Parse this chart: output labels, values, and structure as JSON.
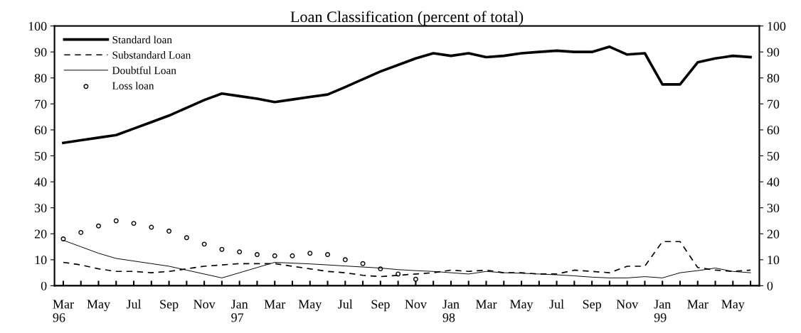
{
  "chart_data": {
    "type": "line",
    "title": "Loan Classification (percent of total)",
    "categories": [
      "Mar\n96",
      null,
      "May",
      null,
      "Jul",
      null,
      "Sep",
      null,
      "Nov",
      null,
      "Jan\n97",
      null,
      "Mar",
      null,
      "May",
      null,
      "Jul",
      null,
      "Sep",
      null,
      "Nov",
      null,
      "Jan\n98",
      null,
      "Mar",
      null,
      "May",
      null,
      "Jul",
      null,
      "Sep",
      null,
      "Nov",
      null,
      "Jan\n99",
      null,
      "Mar",
      null,
      "May",
      null
    ],
    "series": [
      {
        "name": "Standard loan",
        "color": "#000000",
        "line_style": "solid",
        "marker": "none",
        "values": [
          55,
          56,
          57,
          58,
          60.5,
          63,
          65.5,
          68.5,
          71.5,
          74,
          73,
          72,
          70.7,
          71.7,
          72.7,
          73.6,
          76.5,
          79.5,
          82.5,
          85,
          87.5,
          89.5,
          88.5,
          89.5,
          88,
          88.5,
          89.5,
          90,
          90.5,
          90,
          90,
          92,
          89,
          89.5,
          77.5,
          77.5,
          86,
          87.5,
          88.5,
          88
        ]
      },
      {
        "name": "Substandard Loan",
        "color": "#000000",
        "line_style": "dashed",
        "marker": "none",
        "values": [
          9,
          8,
          6.5,
          5.5,
          5.5,
          5,
          5.5,
          6.5,
          7.5,
          8,
          8.5,
          8.5,
          8.5,
          7.5,
          6.5,
          5.5,
          5,
          4,
          3.5,
          4,
          4.5,
          5,
          6,
          5.5,
          6,
          5,
          5,
          4.5,
          4.5,
          6,
          5.5,
          5,
          7.5,
          7.5,
          17,
          17,
          7,
          6,
          5.5,
          6
        ]
      },
      {
        "name": "Doubtful Loan",
        "color": "#000000",
        "line_style": "solid",
        "marker": "none",
        "values": [
          17.5,
          15,
          12.5,
          10.5,
          9.5,
          8.5,
          7.5,
          6,
          4.5,
          3,
          5,
          7,
          9,
          8.7,
          8.4,
          8,
          7.6,
          7.2,
          6.8,
          6.2,
          5.8,
          5.5,
          5,
          4.5,
          5.5,
          5,
          4.8,
          4.5,
          4.2,
          3.8,
          3.3,
          3,
          3,
          3.5,
          3,
          5,
          5.8,
          6.8,
          5.5,
          5
        ]
      },
      {
        "name": "Loss loan",
        "type": "scatter",
        "color": "#000000",
        "marker": "circle",
        "values": [
          18,
          20.5,
          23,
          25,
          24,
          22.5,
          21,
          18.5,
          16,
          14,
          13,
          12,
          11.5,
          11.5,
          12.5,
          12,
          10,
          8.5,
          6.5,
          4.5,
          2.5,
          null,
          null,
          null,
          null,
          null,
          null,
          null,
          null,
          null,
          null,
          null,
          null,
          null,
          null,
          null,
          null,
          null,
          null,
          null
        ]
      }
    ],
    "ylim": [
      0,
      100
    ],
    "yticks": [
      0,
      10,
      20,
      30,
      40,
      50,
      60,
      70,
      80,
      90,
      100
    ],
    "y2lim": [
      0,
      100
    ],
    "y2ticks": [
      0,
      10,
      20,
      30,
      40,
      50,
      60,
      70,
      80,
      90,
      100
    ],
    "grid": false,
    "legend": "top left"
  }
}
